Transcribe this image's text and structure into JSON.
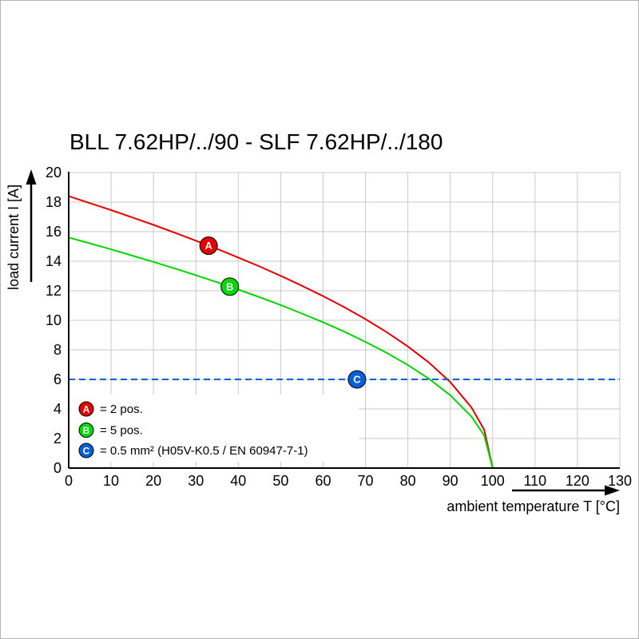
{
  "chart_data": {
    "type": "line",
    "title": "BLL 7.62HP/../90 - SLF 7.62HP/../180",
    "xlabel": "ambient temperature T [°C]",
    "ylabel": "load current I [A]",
    "xlim": [
      0,
      130
    ],
    "ylim": [
      0,
      20
    ],
    "xticks": [
      0,
      10,
      20,
      30,
      40,
      50,
      60,
      70,
      80,
      90,
      100,
      110,
      120,
      130
    ],
    "yticks": [
      0,
      2,
      4,
      6,
      8,
      10,
      12,
      14,
      16,
      18,
      20
    ],
    "grid": true,
    "grid_color": "#c9c9c9",
    "series": [
      {
        "name": "A",
        "color": "#e60000",
        "dashed": false,
        "x": [
          0,
          5,
          10,
          15,
          20,
          25,
          30,
          35,
          40,
          45,
          50,
          55,
          60,
          65,
          70,
          75,
          80,
          85,
          90,
          95,
          98,
          100
        ],
        "y": [
          18.4,
          17.93,
          17.46,
          16.96,
          16.46,
          15.93,
          15.39,
          14.83,
          14.25,
          13.65,
          13.01,
          12.34,
          11.64,
          10.89,
          10.08,
          9.2,
          8.23,
          7.13,
          5.82,
          4.11,
          2.6,
          0
        ]
      },
      {
        "name": "B",
        "color": "#00d800",
        "dashed": false,
        "x": [
          0,
          5,
          10,
          15,
          20,
          25,
          30,
          35,
          40,
          45,
          50,
          55,
          60,
          65,
          70,
          75,
          80,
          85,
          90,
          95,
          98,
          100
        ],
        "y": [
          15.6,
          15.21,
          14.8,
          14.38,
          13.95,
          13.51,
          13.05,
          12.58,
          12.08,
          11.57,
          11.03,
          10.46,
          9.87,
          9.23,
          8.54,
          7.8,
          6.98,
          6.04,
          4.93,
          3.49,
          2.21,
          0
        ]
      },
      {
        "name": "C",
        "color": "#0a5fd7",
        "dashed": true,
        "x": [
          0,
          130
        ],
        "y": [
          6,
          6
        ]
      }
    ],
    "markers": [
      {
        "label": "A",
        "x": 33,
        "y": 15.05,
        "color": "#e60000"
      },
      {
        "label": "B",
        "x": 38,
        "y": 12.28,
        "color": "#00d800"
      },
      {
        "label": "C",
        "x": 68,
        "y": 6.0,
        "color": "#0a5fd7"
      }
    ],
    "legend": [
      {
        "label": "A",
        "color": "#e60000",
        "text": "= 2 pos."
      },
      {
        "label": "B",
        "color": "#00d800",
        "text": "= 5 pos."
      },
      {
        "label": "C",
        "color": "#0a5fd7",
        "text": "= 0.5 mm² (H05V-K0.5 / EN 60947-7-1)"
      }
    ]
  }
}
